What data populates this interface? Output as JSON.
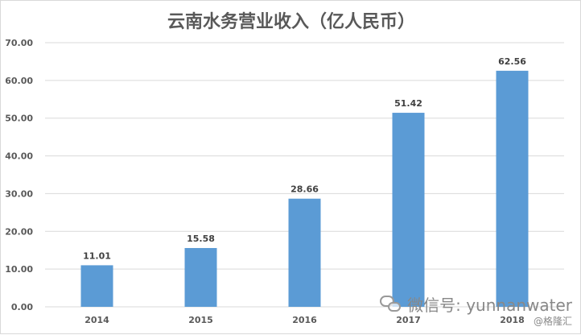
{
  "chart_data": {
    "type": "bar",
    "title": "云南水务营业收入（亿人民币）",
    "categories": [
      "2014",
      "2015",
      "2016",
      "2017",
      "2018"
    ],
    "values": [
      11.01,
      15.58,
      28.66,
      51.42,
      62.56
    ],
    "ylim": [
      0,
      70
    ],
    "yticks": [
      "0.00",
      "10.00",
      "20.00",
      "30.00",
      "40.00",
      "50.00",
      "60.00",
      "70.00"
    ],
    "grid": true,
    "legend": "none",
    "colors": {
      "bar": "#5B9BD5",
      "grid": "#D9D9D9",
      "text": "#595959",
      "title": "#595959"
    }
  },
  "watermark": {
    "icon": "wechat-icon",
    "main_text": "微信号: yunnanwater",
    "sub_text": "@格隆汇"
  }
}
